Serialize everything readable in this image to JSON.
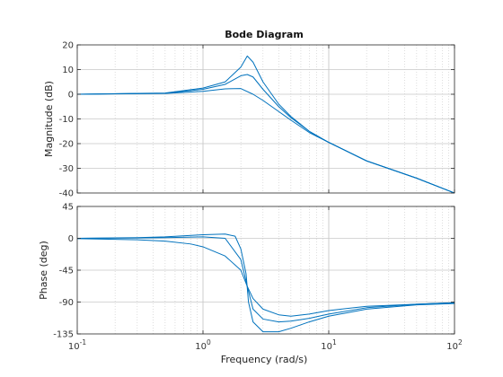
{
  "chart_data": {
    "type": "line",
    "title": "Bode Diagram",
    "xlabel": "Frequency  (rad/s)",
    "x_scale": "log",
    "xlim": [
      0.1,
      100
    ],
    "x_tick_labels": [
      "10",
      "10",
      "10",
      "10"
    ],
    "x_tick_exponents": [
      "-1",
      "0",
      "1",
      "2"
    ],
    "grid": true,
    "line_color": "#0072bd",
    "grid_color": "#c8c8c8",
    "panels": [
      {
        "name": "magnitude",
        "ylabel": "Magnitude (dB)",
        "ylim": [
          -40,
          20
        ],
        "y_ticks": [
          20,
          10,
          0,
          -10,
          -20,
          -30,
          -40
        ],
        "y_tick_labels": [
          "20",
          "10",
          "0",
          "-10",
          "-20",
          "-30",
          "-40"
        ],
        "series": [
          {
            "points": [
              [
                0.1,
                0
              ],
              [
                0.5,
                0.3
              ],
              [
                1,
                1.2
              ],
              [
                1.5,
                2.2
              ],
              [
                2,
                2.3
              ],
              [
                2.5,
                0
              ],
              [
                3,
                -2.5
              ],
              [
                4,
                -7
              ],
              [
                5,
                -10.5
              ],
              [
                7,
                -15.5
              ],
              [
                10,
                -19.5
              ],
              [
                20,
                -27
              ],
              [
                50,
                -34
              ],
              [
                100,
                -40
              ]
            ]
          },
          {
            "points": [
              [
                0.1,
                0
              ],
              [
                0.5,
                0.4
              ],
              [
                1,
                2
              ],
              [
                1.5,
                4
              ],
              [
                2,
                7.5
              ],
              [
                2.25,
                8
              ],
              [
                2.5,
                7
              ],
              [
                3,
                2
              ],
              [
                4,
                -5
              ],
              [
                5,
                -9.5
              ],
              [
                7,
                -15
              ],
              [
                10,
                -19.5
              ],
              [
                20,
                -27
              ],
              [
                50,
                -34
              ],
              [
                100,
                -40
              ]
            ]
          },
          {
            "points": [
              [
                0.1,
                0
              ],
              [
                0.5,
                0.5
              ],
              [
                1,
                2.5
              ],
              [
                1.5,
                5
              ],
              [
                2,
                11
              ],
              [
                2.25,
                15.5
              ],
              [
                2.5,
                13
              ],
              [
                3,
                5
              ],
              [
                4,
                -4
              ],
              [
                5,
                -9
              ],
              [
                7,
                -15
              ],
              [
                10,
                -19.5
              ],
              [
                20,
                -27
              ],
              [
                50,
                -34
              ],
              [
                100,
                -40
              ]
            ]
          }
        ]
      },
      {
        "name": "phase",
        "ylabel": "Phase (deg)",
        "ylim": [
          -135,
          45
        ],
        "y_ticks": [
          45,
          0,
          -45,
          -90,
          -135
        ],
        "y_tick_labels": [
          "45",
          "0",
          "-45",
          "-90",
          "-135"
        ],
        "series": [
          {
            "points": [
              [
                0.1,
                -0.5
              ],
              [
                0.3,
                -2
              ],
              [
                0.5,
                -4
              ],
              [
                0.8,
                -8
              ],
              [
                1,
                -12
              ],
              [
                1.5,
                -25
              ],
              [
                2,
                -45
              ],
              [
                2.25,
                -68
              ],
              [
                2.5,
                -85
              ],
              [
                3,
                -100
              ],
              [
                4,
                -108
              ],
              [
                5,
                -110
              ],
              [
                7,
                -107
              ],
              [
                10,
                -102
              ],
              [
                20,
                -96
              ],
              [
                50,
                -93
              ],
              [
                100,
                -91
              ]
            ]
          },
          {
            "points": [
              [
                0.1,
                0
              ],
              [
                0.3,
                0.5
              ],
              [
                0.5,
                1
              ],
              [
                1,
                2
              ],
              [
                1.5,
                0
              ],
              [
                2,
                -30
              ],
              [
                2.25,
                -68
              ],
              [
                2.5,
                -100
              ],
              [
                3,
                -114
              ],
              [
                4,
                -118
              ],
              [
                5,
                -117
              ],
              [
                7,
                -113
              ],
              [
                10,
                -107
              ],
              [
                20,
                -98
              ],
              [
                50,
                -93
              ],
              [
                100,
                -91
              ]
            ]
          },
          {
            "points": [
              [
                0.1,
                0
              ],
              [
                0.3,
                1
              ],
              [
                0.5,
                2
              ],
              [
                1,
                5
              ],
              [
                1.5,
                6
              ],
              [
                1.8,
                3
              ],
              [
                2,
                -15
              ],
              [
                2.2,
                -50
              ],
              [
                2.3,
                -90
              ],
              [
                2.5,
                -118
              ],
              [
                3,
                -132
              ],
              [
                4,
                -132
              ],
              [
                5,
                -127
              ],
              [
                7,
                -118
              ],
              [
                10,
                -110
              ],
              [
                20,
                -100
              ],
              [
                50,
                -94
              ],
              [
                100,
                -92
              ]
            ]
          }
        ]
      }
    ]
  }
}
